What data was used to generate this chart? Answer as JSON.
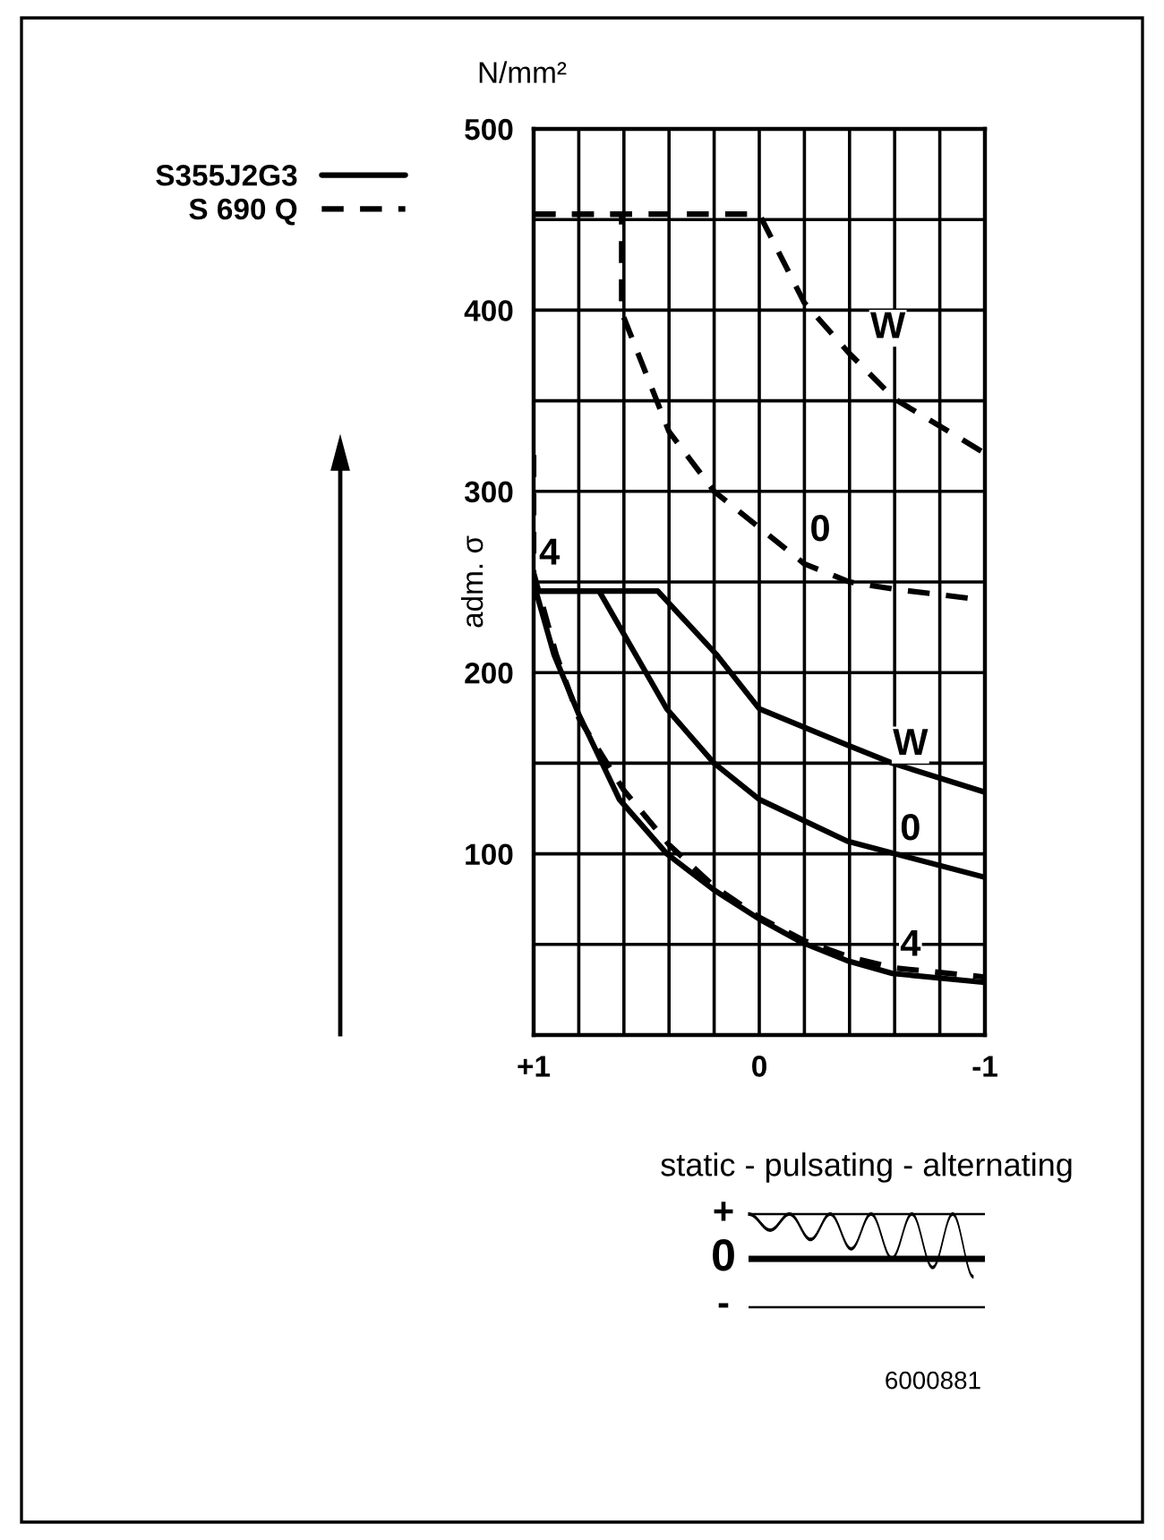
{
  "chart_data": {
    "type": "line",
    "ylabel": "adm. σ",
    "xlim": [
      1,
      -1
    ],
    "ylim": [
      0,
      500
    ],
    "xticks": [
      {
        "value": 1,
        "label": "+1"
      },
      {
        "value": 0.8,
        "label": null
      },
      {
        "value": 0.6,
        "label": null
      },
      {
        "value": 0.4,
        "label": null
      },
      {
        "value": 0.2,
        "label": null
      },
      0,
      {
        "value": -0.2,
        "label": null
      },
      {
        "value": -0.4,
        "label": null
      },
      {
        "value": -0.6,
        "label": null
      },
      {
        "value": -0.8,
        "label": null
      },
      -1
    ],
    "yticks": [
      {
        "value": 50,
        "label": null
      },
      100,
      {
        "value": 150,
        "label": null
      },
      200,
      {
        "value": 250,
        "label": null
      },
      300,
      {
        "value": 350,
        "label": null
      },
      400,
      {
        "value": 450,
        "label": null
      },
      500
    ],
    "grid": true,
    "legend": "top left",
    "series": [
      {
        "name": "S355J2G3",
        "color": "#000000",
        "line_style": "solid",
        "x": [
          1,
          0.45,
          0.19,
          0,
          -0.39,
          -0.59,
          -1
        ],
        "values": [
          245,
          245,
          210,
          180,
          160,
          150,
          134
        ]
      },
      {
        "color": "#000000",
        "line_style": "solid",
        "x": [
          1,
          0.71,
          0.41,
          0.2,
          0,
          -0.39,
          -1
        ],
        "values": [
          245,
          245,
          180,
          150,
          130,
          107,
          87
        ]
      },
      {
        "color": "#000000",
        "line_style": "solid",
        "x": [
          0.99,
          0.91,
          0.8,
          0.62,
          0.41,
          0.2,
          0,
          -0.19,
          -0.39,
          -0.59,
          -1
        ],
        "values": [
          245,
          210,
          177,
          130,
          100,
          80,
          64,
          51,
          41,
          34,
          29
        ]
      },
      {
        "name": "S 690 Q",
        "color": "#000000",
        "line_style": "dashed",
        "x": [
          1,
          0,
          -0.2,
          -0.4,
          -0.6,
          -1
        ],
        "values": [
          453,
          453,
          404,
          376,
          351,
          321
        ]
      },
      {
        "color": "#000000",
        "line_style": "dashed",
        "x": [
          1,
          0.61,
          0.61,
          0.4,
          0.2,
          0,
          -0.2,
          -0.4,
          -0.6,
          -1
        ],
        "values": [
          453,
          453,
          399,
          333,
          300,
          280,
          260,
          250,
          246,
          240
        ]
      },
      {
        "color": "#000000",
        "line_style": "dashed",
        "x": [
          1,
          1,
          0.9,
          0.8,
          0.6,
          0.4,
          0.2,
          0,
          -0.2,
          -0.4,
          -0.6,
          -1
        ],
        "values": [
          320,
          255,
          210,
          175,
          135,
          105,
          82,
          65,
          52,
          43,
          37,
          32
        ]
      }
    ],
    "annotations": [
      {
        "text": "W",
        "x": -0.57,
        "y": 390
      },
      {
        "text": "0",
        "x": -0.27,
        "y": 278
      },
      {
        "text": "4",
        "x": 0.93,
        "y": 265
      },
      {
        "text": "W",
        "x": -0.67,
        "y": 160
      },
      {
        "text": "0",
        "x": -0.67,
        "y": 113
      },
      {
        "text": "4",
        "x": -0.67,
        "y": 49
      },
      "N/mm²",
      "static - pulsating - alternating",
      "+",
      "0",
      "-",
      "6000881"
    ]
  }
}
